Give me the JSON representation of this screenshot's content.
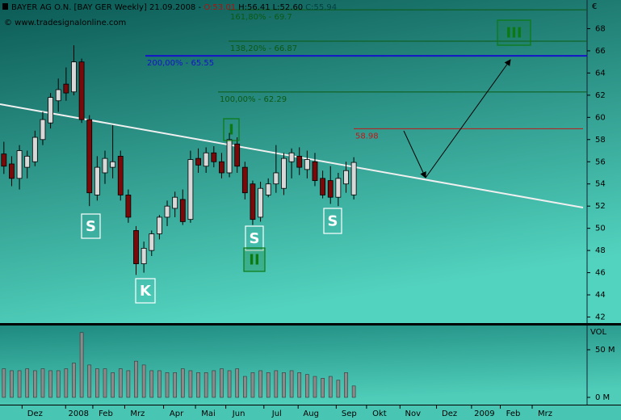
{
  "chart_data": {
    "type": "candlestick",
    "title": "BAYER AG O.N. [BAY GER  Weekly] 21.09.2008 -",
    "ohlc": [
      "O:53.01",
      "H:56.41",
      "L:52.60",
      "C:55.94"
    ],
    "source": "© www.tradesignalonline.com",
    "y_unit": "€",
    "ylim": [
      41.6,
      70
    ],
    "yticks": [
      42,
      44,
      46,
      48,
      50,
      52,
      54,
      56,
      58,
      60,
      62,
      64,
      66,
      68
    ],
    "xlim": [
      0,
      75.5
    ],
    "xticks": [
      {
        "value": 4.5,
        "label": "Dez"
      },
      {
        "value": 10.1,
        "label": "2008"
      },
      {
        "value": 13.6,
        "label": "Feb"
      },
      {
        "value": 17.7,
        "label": "Mrz"
      },
      {
        "value": 22.7,
        "label": "Apr"
      },
      {
        "value": 26.8,
        "label": "Mai"
      },
      {
        "value": 30.7,
        "label": "Jun"
      },
      {
        "value": 35.6,
        "label": "Jul"
      },
      {
        "value": 40,
        "label": "Aug"
      },
      {
        "value": 44.9,
        "label": "Sep"
      },
      {
        "value": 48.8,
        "label": "Okt"
      },
      {
        "value": 53.1,
        "label": "Nov"
      },
      {
        "value": 57.8,
        "label": "Dez"
      },
      {
        "value": 62.3,
        "label": "2009"
      },
      {
        "value": 66,
        "label": "Feb"
      },
      {
        "value": 70.1,
        "label": "Mrz"
      }
    ],
    "up_color": "#d8d8d8",
    "down_color": "#7a0a0a",
    "candles": {
      "open": [
        56.7,
        55.8,
        54.5,
        55.5,
        56,
        58,
        59.5,
        61.5,
        63,
        62.3,
        65,
        59.8,
        53,
        55,
        55.5,
        56.5,
        53,
        49.8,
        46.8,
        48,
        49.5,
        51,
        51.8,
        52.6,
        50.8,
        56.3,
        55.6,
        56.8,
        56,
        55,
        57.6,
        55.5,
        54,
        51,
        53,
        54,
        53.6,
        56,
        56.5,
        55.3,
        56,
        54.5,
        54.3,
        52.8,
        54,
        53.01
      ],
      "high": [
        57.8,
        56.5,
        57.5,
        57,
        58.8,
        60.5,
        62.2,
        63.5,
        64.5,
        66.5,
        65.3,
        60.2,
        56.5,
        57,
        59.3,
        57,
        53.5,
        50.2,
        48.8,
        49.8,
        51.2,
        52.5,
        53.3,
        53.5,
        57,
        57.2,
        57.3,
        57.4,
        56.8,
        58.6,
        58.2,
        56,
        54.3,
        54.2,
        54.5,
        57.5,
        56.8,
        57.2,
        57.3,
        57,
        56.8,
        55.2,
        55.6,
        55,
        56,
        56.41
      ],
      "low": [
        54.9,
        53.8,
        53.5,
        54.5,
        55.6,
        57.5,
        59,
        60.5,
        61.5,
        62,
        59.5,
        52,
        52.5,
        54,
        54.5,
        52.5,
        50.5,
        45.8,
        46,
        47.5,
        49,
        50.2,
        51,
        50.3,
        50.5,
        55,
        55,
        55.5,
        54.5,
        54.6,
        55,
        52.6,
        50.3,
        50.6,
        52.8,
        53.2,
        53,
        54.5,
        54.8,
        54.5,
        53.8,
        52.7,
        52.2,
        52,
        53.2,
        52.6
      ],
      "close": [
        55.6,
        54.5,
        57,
        56.5,
        58.2,
        59.8,
        61.8,
        62.5,
        62.2,
        65,
        59.8,
        53.2,
        55.5,
        56.3,
        56,
        53,
        51,
        46.8,
        48.2,
        49.5,
        51,
        52,
        52.8,
        50.6,
        56.2,
        55.7,
        56.8,
        56,
        55,
        58,
        55.6,
        53.2,
        50.8,
        53.6,
        54,
        55,
        56.3,
        56.8,
        55.5,
        56.2,
        54.3,
        53,
        52.8,
        54.5,
        55.2,
        55.94
      ]
    },
    "levels": [
      {
        "value": 69.7,
        "label": "161,80% - 69.7",
        "color": "#0b5a12"
      },
      {
        "value": 66.87,
        "label": "138,20% - 66.87",
        "color": "#0b5a12"
      },
      {
        "value": 65.55,
        "label": "200,00% - 65.55",
        "color": "#1414c8"
      },
      {
        "value": 62.29,
        "label": "100,00% - 62.29",
        "color": "#0b5a12"
      },
      {
        "value": 58.98,
        "color": "#c01818"
      }
    ],
    "annotations": [
      "S",
      "K",
      "I",
      "S",
      "II",
      "S",
      "III"
    ],
    "volume": {
      "label": "VOL",
      "color": "#8a8a8a",
      "ylim": [
        -6.8,
        74.6
      ],
      "yticks": [
        {
          "value": 50,
          "label": "50 M"
        },
        {
          "value": 0,
          "label": "0 M"
        }
      ],
      "values": [
        30,
        28,
        28,
        30,
        28,
        30,
        28,
        28,
        30,
        36,
        68,
        34,
        30,
        30,
        26,
        30,
        28,
        38,
        34,
        28,
        28,
        26,
        26,
        30,
        28,
        26,
        26,
        28,
        30,
        28,
        30,
        22,
        26,
        28,
        26,
        28,
        26,
        28,
        26,
        24,
        22,
        20,
        22,
        18,
        26,
        12
      ]
    }
  }
}
